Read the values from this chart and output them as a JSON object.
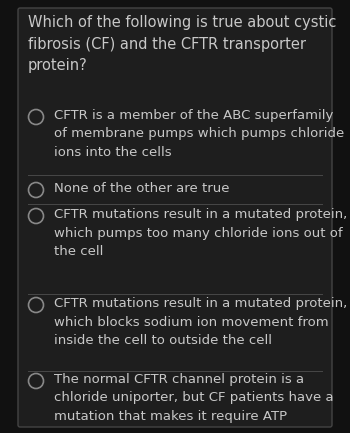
{
  "bg_color": "#111111",
  "card_bg": "#1e1e1e",
  "border_color": "#444444",
  "text_color": "#c8c8c8",
  "line_color": "#484848",
  "circle_edge_color": "#888888",
  "question": "Which of the following is true about cystic\nfibrosis (CF) and the CFTR transporter\nprotein?",
  "options": [
    "CFTR is a member of the ABC superfamily\nof membrane pumps which pumps chloride\nions into the cells",
    "None of the other are true",
    "CFTR mutations result in a mutated protein,\nwhich pumps too many chloride ions out of\nthe cell",
    "CFTR mutations result in a mutated protein,\nwhich blocks sodium ion movement from\ninside the cell to outside the cell",
    "The normal CFTR channel protein is a\nchloride uniporter, but CF patients have a\nmutation that makes it require ATP"
  ],
  "question_fontsize": 10.5,
  "option_fontsize": 9.5,
  "figsize": [
    3.5,
    4.33
  ],
  "dpi": 100
}
